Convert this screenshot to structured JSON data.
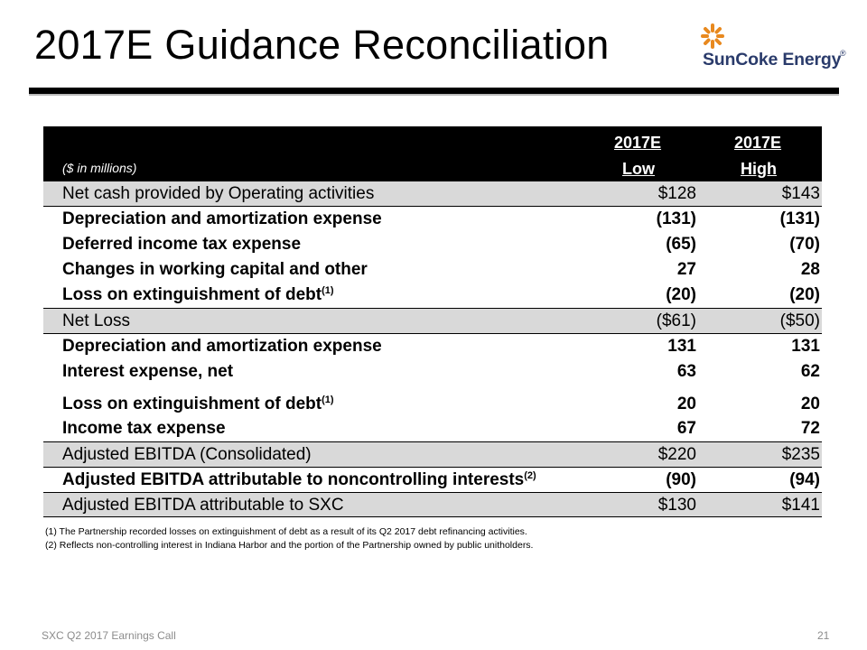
{
  "title": "2017E Guidance Reconciliation",
  "logo": {
    "name": "SunCoke Energy",
    "registered": "®",
    "colors": {
      "rays": "#e8891f",
      "text": "#2a3b6b"
    }
  },
  "table": {
    "units": "($ in millions)",
    "col_low": {
      "line1": "2017E",
      "line2": "Low"
    },
    "col_high": {
      "line1": "2017E",
      "line2": "High"
    },
    "rows": [
      {
        "label": "Net cash provided by Operating activities",
        "sup": "",
        "low": "$128",
        "high": "$143",
        "kind": "sub"
      },
      {
        "label": "Depreciation and amortization expense",
        "sup": "",
        "low": "(131)",
        "high": "(131)",
        "kind": "detail"
      },
      {
        "label": "Deferred income tax expense",
        "sup": "",
        "low": "(65)",
        "high": "(70)",
        "kind": "detail"
      },
      {
        "label": "Changes in working capital and other",
        "sup": "",
        "low": "27",
        "high": "28",
        "kind": "detail"
      },
      {
        "label": "Loss on extinguishment of debt",
        "sup": "(1)",
        "low": "(20)",
        "high": "(20)",
        "kind": "detail"
      },
      {
        "label": "Net Loss",
        "sup": "",
        "low": "($61)",
        "high": "($50)",
        "kind": "sub"
      },
      {
        "label": "Depreciation and amortization expense",
        "sup": "",
        "low": "131",
        "high": "131",
        "kind": "detail"
      },
      {
        "label": "Interest expense, net",
        "sup": "",
        "low": "63",
        "high": "62",
        "kind": "detail"
      },
      {
        "label": "Loss on extinguishment of debt",
        "sup": "(1)",
        "low": "20",
        "high": "20",
        "kind": "detail"
      },
      {
        "label": "Income tax expense",
        "sup": "",
        "low": "67",
        "high": "72",
        "kind": "detail"
      },
      {
        "label": "Adjusted EBITDA (Consolidated)",
        "sup": "",
        "low": "$220",
        "high": "$235",
        "kind": "sub"
      },
      {
        "label": "Adjusted EBITDA attributable to noncontrolling interests",
        "sup": "(2)",
        "low": "(90)",
        "high": "(94)",
        "kind": "detail"
      },
      {
        "label": "Adjusted EBITDA attributable to SXC",
        "sup": "",
        "low": "$130",
        "high": "$141",
        "kind": "sub"
      }
    ]
  },
  "footnotes": [
    "(1)  The Partnership recorded losses on extinguishment of debt as a result of its Q2 2017 debt refinancing activities.",
    "(2)  Reflects non-controlling interest in Indiana Harbor and the portion of the Partnership owned by public unitholders."
  ],
  "footer": {
    "left": "SXC Q2 2017 Earnings Call",
    "page": "21"
  }
}
